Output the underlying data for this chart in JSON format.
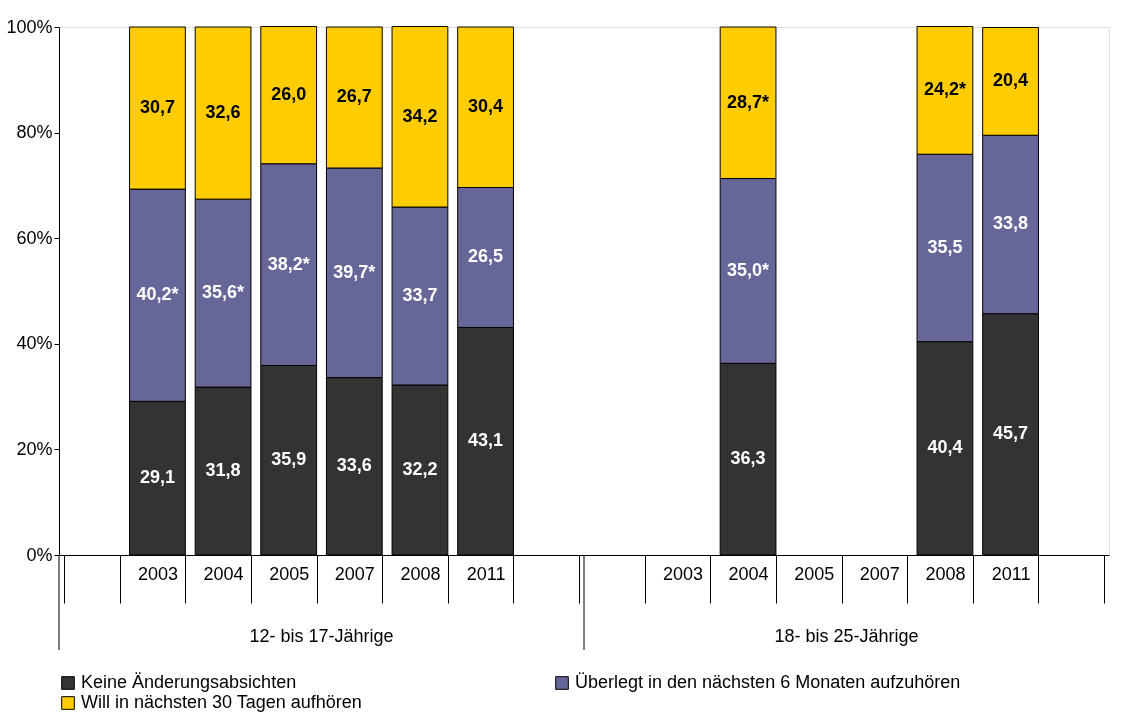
{
  "chart_data": {
    "type": "bar",
    "stacked": true,
    "categories": [
      null,
      "2003",
      "2004",
      "2005",
      "2007",
      "2008",
      "2011",
      null,
      null,
      "2003",
      "2004",
      "2005",
      "2007",
      "2008",
      "2011",
      null
    ],
    "series": [
      {
        "name": "Keine Änderungsabsichten",
        "color": "#333333",
        "values": [
          null,
          29.1,
          31.8,
          35.9,
          33.6,
          32.2,
          43.1,
          null,
          null,
          null,
          36.3,
          null,
          null,
          40.4,
          45.7,
          null
        ],
        "value_labels": [
          null,
          "29,1",
          "31,8",
          "35,9",
          "33,6",
          "32,2",
          "43,1",
          null,
          null,
          null,
          "36,3",
          null,
          null,
          "40,4",
          "45,7",
          null
        ]
      },
      {
        "name": "Überlegt in den nächsten 6 Monaten aufzuhören",
        "color": "#666699",
        "values": [
          null,
          40.2,
          35.6,
          38.2,
          39.7,
          33.7,
          26.5,
          null,
          null,
          null,
          35.0,
          null,
          null,
          35.5,
          33.8,
          null
        ],
        "value_labels": [
          null,
          "40,2*",
          "35,6*",
          "38,2*",
          "39,7*",
          "33,7",
          "26,5",
          null,
          null,
          null,
          "35,0*",
          null,
          null,
          "35,5",
          "33,8",
          null
        ]
      },
      {
        "name": "Will in nächsten 30 Tagen aufhören",
        "color": "#ffcc00",
        "values": [
          null,
          30.7,
          32.6,
          26.0,
          26.7,
          34.2,
          30.4,
          null,
          null,
          null,
          28.7,
          null,
          null,
          24.2,
          20.4,
          null
        ],
        "value_labels": [
          null,
          "30,7",
          "32,6",
          "26,0",
          "26,7",
          "34,2",
          "30,4",
          null,
          null,
          null,
          "28,7*",
          null,
          null,
          "24,2*",
          "20,4",
          null
        ]
      }
    ],
    "annotations": [
      "12- bis 17-Jährige",
      "18- bis 25-Jährige"
    ],
    "ylim": [
      0,
      100
    ],
    "yticks": [
      {
        "value": 0,
        "label": "0%"
      },
      {
        "value": 20,
        "label": "20%"
      },
      {
        "value": 40,
        "label": "40%"
      },
      {
        "value": 60,
        "label": "60%"
      },
      {
        "value": 80,
        "label": "80%"
      },
      {
        "value": 100,
        "label": "100%"
      }
    ],
    "grid": false,
    "legend": "bottom"
  }
}
